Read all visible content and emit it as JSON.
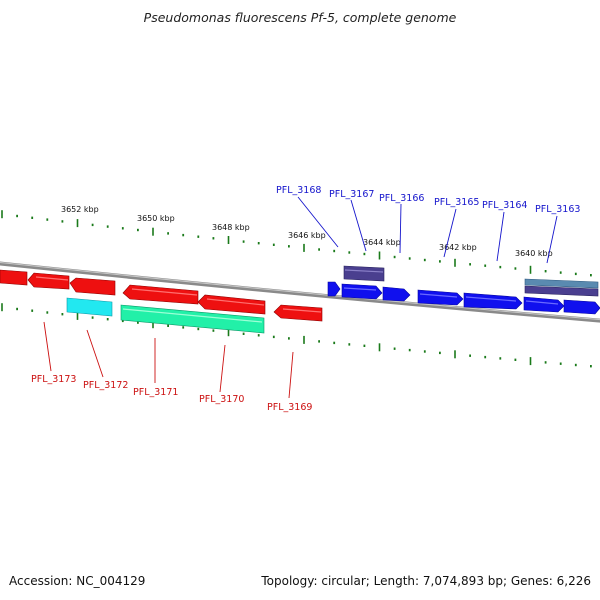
{
  "title": "Pseudomonas fluorescens Pf-5, complete genome",
  "footer": {
    "accession": "Accession: NC_004129",
    "summary": "Topology: circular; Length: 7,074,893 bp; Genes: 6,226"
  },
  "colors": {
    "backbone": "#8a8a8a",
    "tick": "#1a7a1a",
    "forward_label": "#1515cc",
    "reverse_label": "#cc1111",
    "forward_gene": "#1010ee",
    "reverse_gene": "#ee1010",
    "cyan_gene": "#22e8f0",
    "green_gene": "#22f0a8",
    "purple_gene": "#4a3f8f",
    "steel_gene": "#5a8ab0"
  },
  "scale_labels": [
    "3652 kbp",
    "3650 kbp",
    "3648 kbp",
    "3646 kbp",
    "3644 kbp",
    "3642 kbp",
    "3640 kbp"
  ],
  "forward_genes": [
    "PFL_3168",
    "PFL_3167",
    "PFL_3166",
    "PFL_3165",
    "PFL_3164",
    "PFL_3163"
  ],
  "reverse_genes": [
    "PFL_3173",
    "PFL_3172",
    "PFL_3171",
    "PFL_3170",
    "PFL_3169"
  ]
}
